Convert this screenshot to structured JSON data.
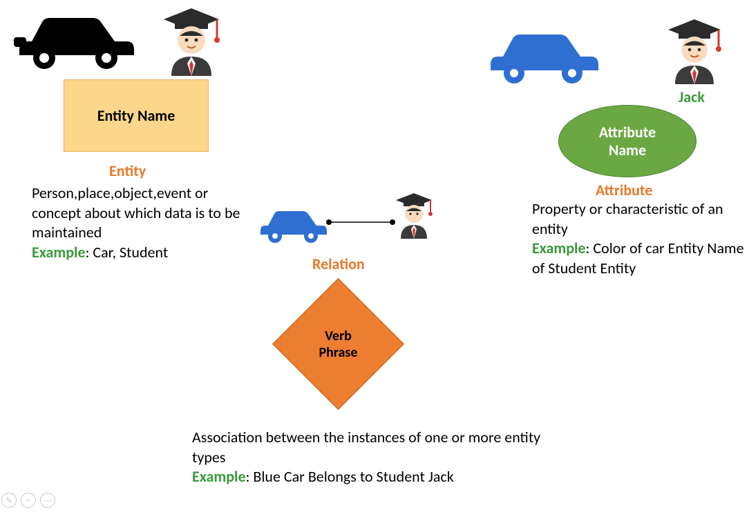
{
  "colors": {
    "orange_text": "#e7792b",
    "green_text": "#3a9a3a",
    "entity_fill": "#fcd68a",
    "entity_border": "#edb35a",
    "attr_fill": "#6ba843",
    "attr_border": "#4d8031",
    "diamond_fill": "#ed7d31",
    "diamond_border": "#c15a17",
    "car_black": "#000000",
    "car_blue": "#2e6fd1",
    "grad_cap": "#2b2b2b",
    "grad_face": "#f9dcc0",
    "grad_tie": "#d43a2f",
    "grad_body": "#3b3b3b",
    "jack_label": "#3a9a3a"
  },
  "entity": {
    "shape_label": "Entity Name",
    "title": "Entity",
    "description": "Person,place,object,event or concept about which data is to be maintained",
    "example_label": "Example",
    "example_text": ": Car, Student"
  },
  "attribute": {
    "shape_label": "Attribute Name",
    "title": "Attribute",
    "jack_label": "Jack",
    "description": "Property or characteristic of an entity",
    "example_label": "Example",
    "example_text": ": Color of car Entity Name of Student Entity"
  },
  "relation": {
    "shape_label": "Verb Phrase",
    "title": "Relation",
    "description": "Association between the instances of one or more entity types",
    "example_label": "Example",
    "example_text": ": Blue Car Belongs to Student Jack"
  }
}
